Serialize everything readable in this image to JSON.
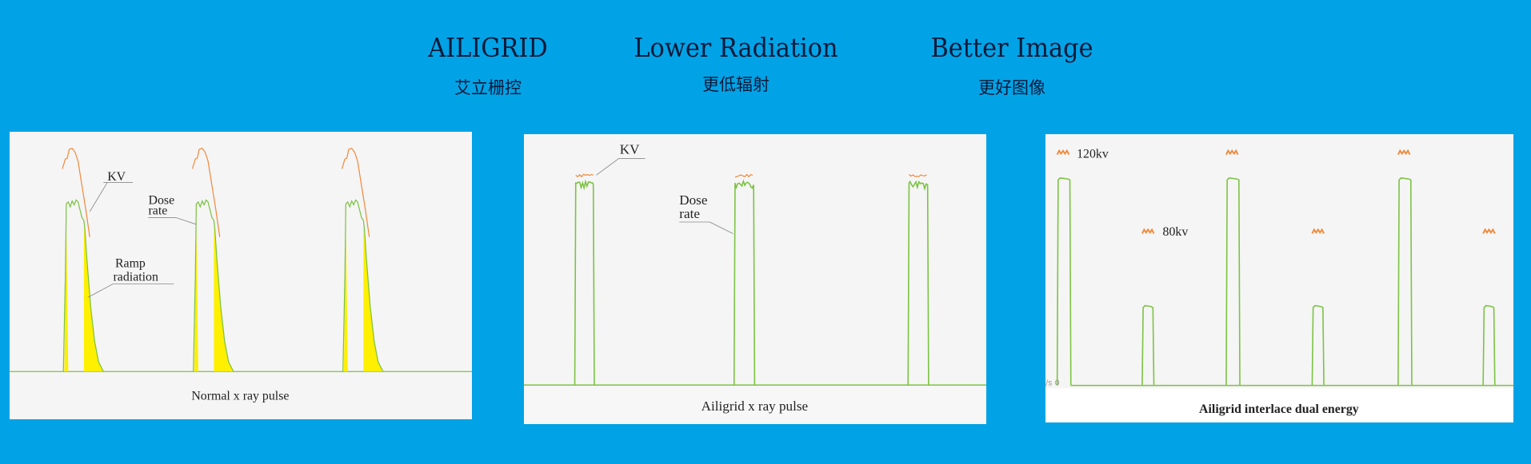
{
  "header": {
    "items": [
      {
        "en": "AILIGRID",
        "cn": "艾立栅控"
      },
      {
        "en": "Lower Radiation",
        "cn": "更低辐射"
      },
      {
        "en": "Better Image",
        "cn": "更好图像"
      }
    ]
  },
  "colors": {
    "background": "#02a3e6",
    "dose_rate": "#7cc242",
    "kv": "#f08a3c",
    "ramp_radiation": "#ffef00",
    "panel": "#f5f5f5"
  },
  "chart_data": [
    {
      "type": "line",
      "title": "Normal x ray pulse",
      "labels": {
        "kv": "KV",
        "dose_line1": "Dose",
        "dose_line2": "rate",
        "ramp_line1": "Ramp",
        "ramp_line2": "radiation"
      },
      "pulses": 3
    },
    {
      "type": "line",
      "title": "Ailigrid x ray pulse",
      "labels": {
        "kv": "KV",
        "dose_line1": "Dose",
        "dose_line2": "rate"
      },
      "pulses": 3
    },
    {
      "type": "line",
      "title": "Ailigrid interlace dual energy",
      "labels": {
        "high": "120kv",
        "low": "80kv",
        "axis": "/s  0"
      },
      "sequence": [
        "120kv",
        "80kv",
        "120kv",
        "80kv",
        "120kv",
        "80kv"
      ]
    }
  ]
}
